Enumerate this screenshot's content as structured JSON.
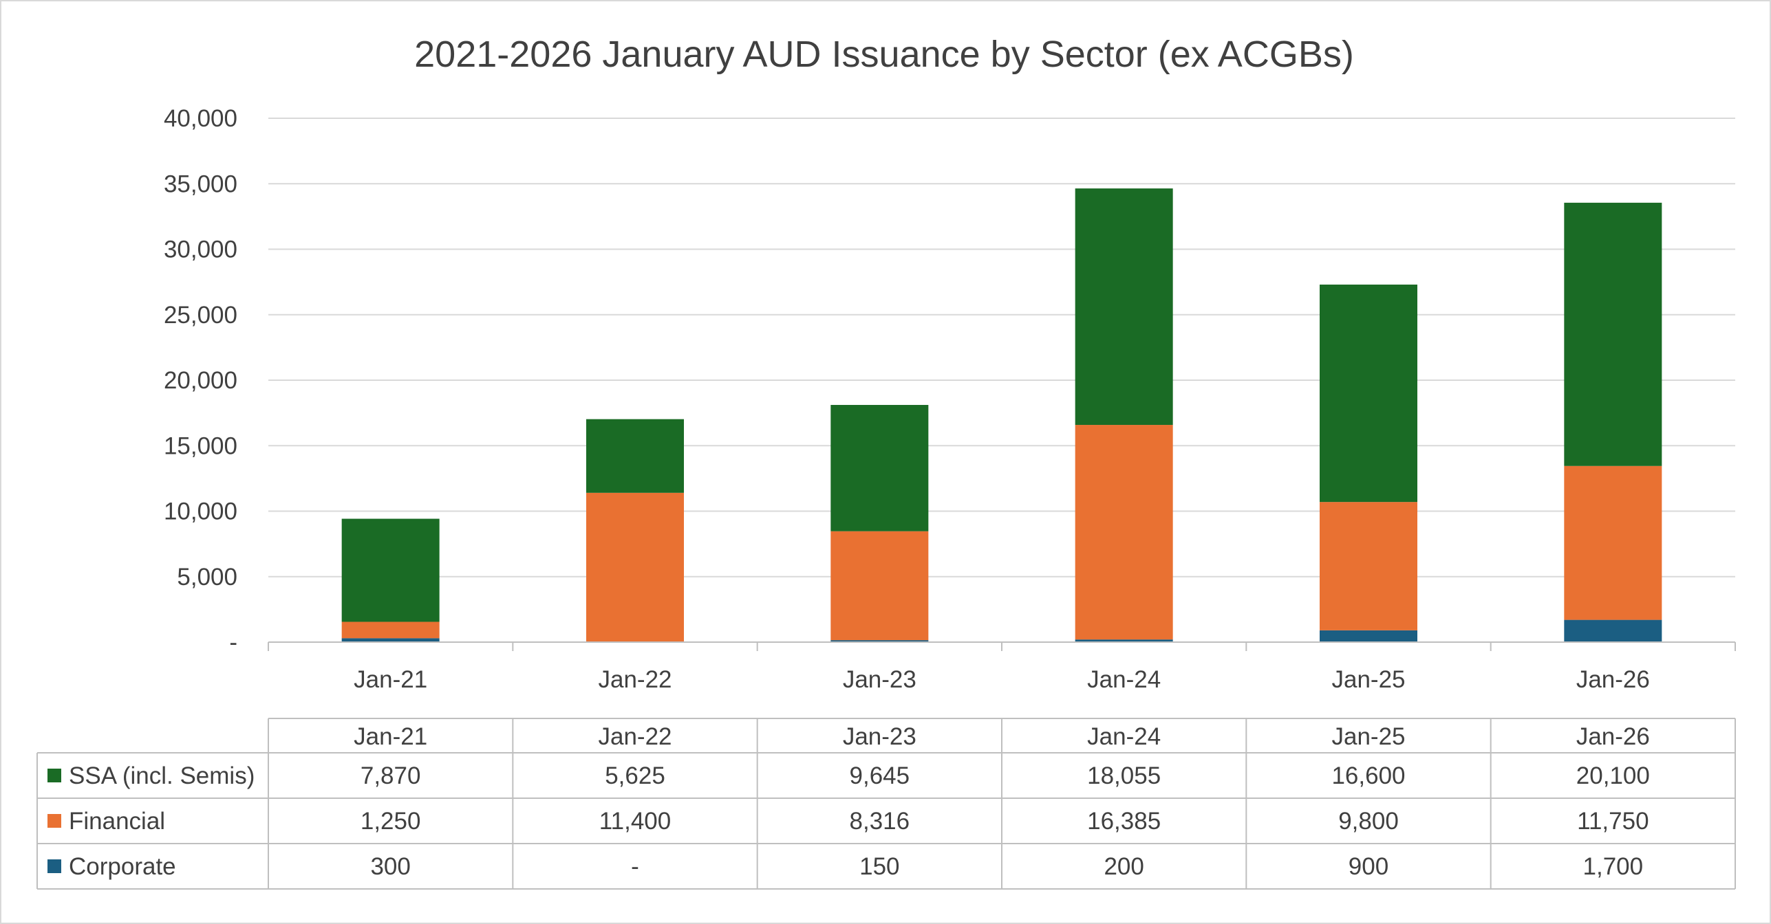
{
  "chart_data": {
    "type": "bar",
    "stacked": true,
    "title": "2021-2026 January AUD Issuance by Sector (ex ACGBs)",
    "xlabel": "",
    "ylabel": "",
    "categories": [
      "Jan-21",
      "Jan-22",
      "Jan-23",
      "Jan-24",
      "Jan-25",
      "Jan-26"
    ],
    "ylim": [
      0,
      40000
    ],
    "yticks": [
      0,
      5000,
      10000,
      15000,
      20000,
      25000,
      30000,
      35000,
      40000
    ],
    "ytick_labels": [
      "-",
      "5,000",
      "10,000",
      "15,000",
      "20,000",
      "25,000",
      "30,000",
      "35,000",
      "40,000"
    ],
    "grid": true,
    "legend_placement": "data-table",
    "series": [
      {
        "name": "Corporate",
        "color": "#1b5e82",
        "values": [
          300,
          0,
          150,
          200,
          900,
          1700
        ],
        "labels": [
          "300",
          "-",
          "150",
          "200",
          "900",
          "1,700"
        ]
      },
      {
        "name": "Financial",
        "color": "#e97132",
        "values": [
          1250,
          11400,
          8316,
          16385,
          9800,
          11750
        ],
        "labels": [
          "1,250",
          "11,400",
          "8,316",
          "16,385",
          "9,800",
          "11,750"
        ]
      },
      {
        "name": "SSA (incl. Semis)",
        "color": "#1a6b25",
        "values": [
          7870,
          5625,
          9645,
          18055,
          16600,
          20100
        ],
        "labels": [
          "7,870",
          "5,625",
          "9,645",
          "18,055",
          "16,600",
          "20,100"
        ]
      }
    ],
    "table_row_order": [
      "SSA (incl. Semis)",
      "Financial",
      "Corporate"
    ]
  }
}
